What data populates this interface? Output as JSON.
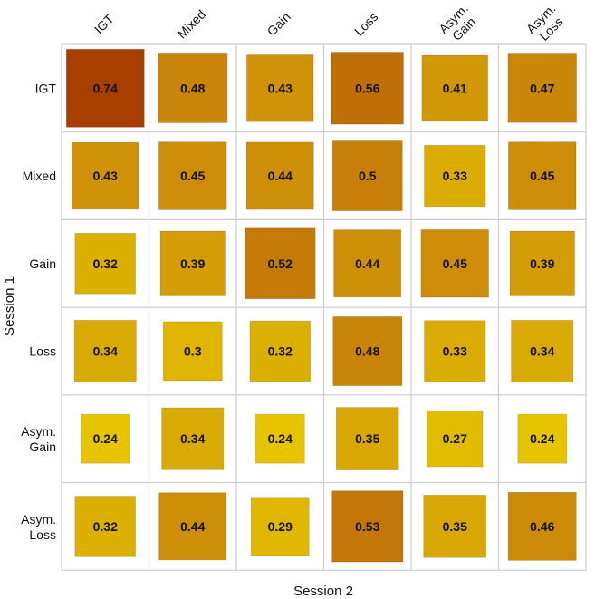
{
  "chart_data": {
    "type": "heatmap",
    "xlabel": "Session 2",
    "ylabel": "Session 1",
    "columns": [
      [
        "IGT"
      ],
      [
        "Mixed"
      ],
      [
        "Gain"
      ],
      [
        "Loss"
      ],
      [
        "Asym.",
        "Gain"
      ],
      [
        "Asym.",
        "Loss"
      ]
    ],
    "rows": [
      [
        "IGT"
      ],
      [
        "Mixed"
      ],
      [
        "Gain"
      ],
      [
        "Loss"
      ],
      [
        "Asym.",
        "Gain"
      ],
      [
        "Asym.",
        "Loss"
      ]
    ],
    "values": [
      [
        0.74,
        0.48,
        0.43,
        0.56,
        0.41,
        0.47
      ],
      [
        0.43,
        0.45,
        0.44,
        0.5,
        0.33,
        0.45
      ],
      [
        0.32,
        0.39,
        0.52,
        0.44,
        0.45,
        0.39
      ],
      [
        0.34,
        0.3,
        0.32,
        0.48,
        0.33,
        0.34
      ],
      [
        0.24,
        0.34,
        0.24,
        0.35,
        0.27,
        0.24
      ],
      [
        0.32,
        0.44,
        0.29,
        0.53,
        0.35,
        0.46
      ]
    ],
    "value_range": [
      0.24,
      0.74
    ],
    "color_scale": {
      "low": "#e6c400",
      "mid": "#c8820a",
      "high": "#a83e00"
    },
    "gridline_color": "#cccccc"
  }
}
